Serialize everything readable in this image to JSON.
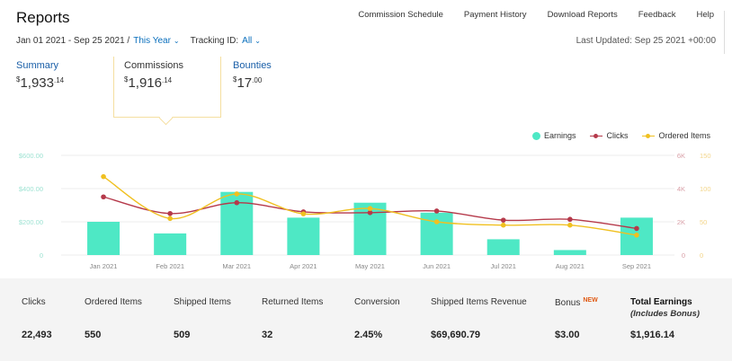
{
  "header": {
    "title": "Reports"
  },
  "nav": [
    "Commission Schedule",
    "Payment History",
    "Download Reports",
    "Feedback",
    "Help"
  ],
  "filters": {
    "date_range": "Jan 01 2021 - Sep 25 2021 /",
    "period": "This Year",
    "tracking_label": "Tracking ID:",
    "tracking_value": "All"
  },
  "last_updated": "Last Updated: Sep 25 2021 +00:00",
  "tabs": {
    "summary": {
      "label": "Summary",
      "currency": "$",
      "whole": "1,933",
      "cents": "14"
    },
    "commissions": {
      "label": "Commissions",
      "currency": "$",
      "whole": "1,916",
      "cents": "14"
    },
    "bounties": {
      "label": "Bounties",
      "currency": "$",
      "whole": "17",
      "cents": "00"
    }
  },
  "legend": {
    "earnings": "Earnings",
    "clicks": "Clicks",
    "ordered": "Ordered Items"
  },
  "chart_data": {
    "type": "bar",
    "categories": [
      "Jan 2021",
      "Feb 2021",
      "Mar 2021",
      "Apr 2021",
      "May 2021",
      "Jun 2021",
      "Jul 2021",
      "Aug 2021",
      "Sep 2021"
    ],
    "left_axis": {
      "ticks": [
        "0",
        "$200.00",
        "$400.00",
        "$600.00"
      ],
      "ylim": [
        0,
        600
      ]
    },
    "clicks_axis": {
      "ticks": [
        "0",
        "2K",
        "4K",
        "6K"
      ],
      "ylim": [
        0,
        6000
      ]
    },
    "ordered_axis": {
      "ticks": [
        "0",
        "50",
        "100",
        "150"
      ],
      "ylim": [
        0,
        150
      ]
    },
    "series": [
      {
        "name": "Earnings",
        "type": "bar",
        "axis": "left",
        "color": "#4ee8c5",
        "values": [
          200,
          130,
          380,
          225,
          315,
          255,
          95,
          30,
          225
        ]
      },
      {
        "name": "Clicks",
        "type": "line",
        "axis": "clicks",
        "color": "#b5394a",
        "values": [
          3500,
          2500,
          3150,
          2600,
          2550,
          2650,
          2100,
          2150,
          1600
        ]
      },
      {
        "name": "Ordered Items",
        "type": "line",
        "axis": "ordered",
        "color": "#f0c020",
        "values": [
          118,
          55,
          92,
          62,
          70,
          50,
          45,
          45,
          30
        ]
      }
    ]
  },
  "stats": [
    {
      "label": "Clicks",
      "value": "22,493"
    },
    {
      "label": "Ordered Items",
      "value": "550"
    },
    {
      "label": "Shipped Items",
      "value": "509"
    },
    {
      "label": "Returned Items",
      "value": "32"
    },
    {
      "label": "Conversion",
      "value": "2.45%"
    },
    {
      "label": "Shipped Items Revenue",
      "value": "$69,690.79"
    },
    {
      "label": "Bonus",
      "badge": "NEW",
      "value": "$3.00"
    },
    {
      "label": "Total Earnings",
      "sub": "(Includes Bonus)",
      "value": "$1,916.14"
    }
  ]
}
